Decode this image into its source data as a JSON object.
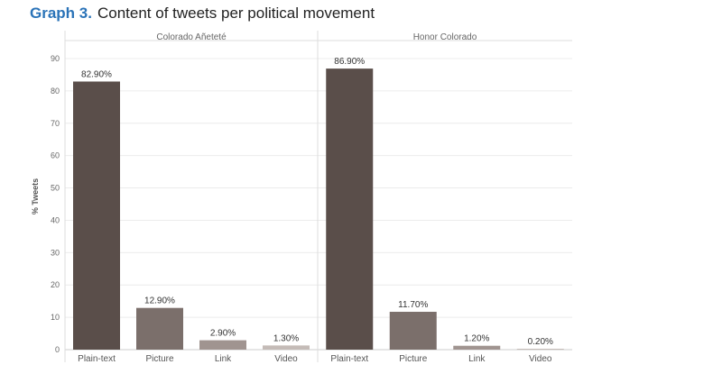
{
  "caption": {
    "label": "Graph 3.",
    "title": "Content of tweets per political movement"
  },
  "chart_data": {
    "type": "bar",
    "ylabel": "% Tweets",
    "ylim": [
      0,
      90
    ],
    "yticks": [
      0,
      10,
      20,
      30,
      40,
      50,
      60,
      70,
      80,
      90
    ],
    "grid": true,
    "panels": [
      {
        "title": "Colorado Añeteté",
        "categories": [
          "Plain-text",
          "Picture",
          "Link",
          "Video"
        ],
        "values": [
          82.9,
          12.9,
          2.9,
          1.3
        ],
        "labels": [
          "82.90%",
          "12.90%",
          "2.90%",
          "1.30%"
        ]
      },
      {
        "title": "Honor Colorado",
        "categories": [
          "Plain-text",
          "Picture",
          "Link",
          "Video"
        ],
        "values": [
          86.9,
          11.7,
          1.2,
          0.2
        ],
        "labels": [
          "86.90%",
          "11.70%",
          "1.20%",
          "0.20%"
        ]
      }
    ],
    "colors": [
      "#5a4e4a",
      "#7b6f6b",
      "#a09490",
      "#c4bbb7"
    ]
  }
}
